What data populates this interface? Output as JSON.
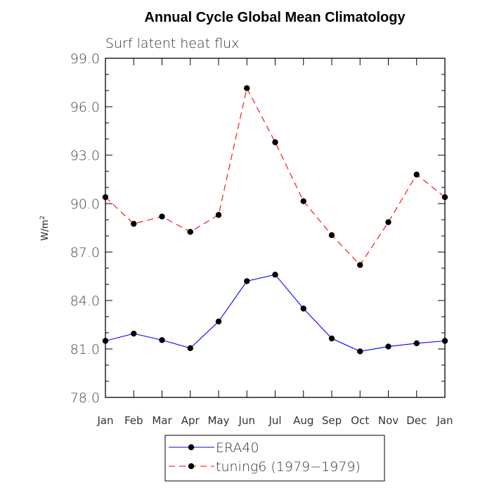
{
  "chart_data": {
    "type": "line",
    "title": "Annual Cycle Global Mean Climatology",
    "subtitle": "Surf latent heat flux",
    "xlabel": "",
    "ylabel_base": "W/m",
    "ylabel_sup": "2",
    "categories": [
      "Jan",
      "Feb",
      "Mar",
      "Apr",
      "May",
      "Jun",
      "Jul",
      "Aug",
      "Sep",
      "Oct",
      "Nov",
      "Dec",
      "Jan"
    ],
    "ylim": [
      78.0,
      99.0
    ],
    "yticks": [
      "78.0",
      "81.0",
      "84.0",
      "87.0",
      "90.0",
      "93.0",
      "96.0",
      "99.0"
    ],
    "grid": false,
    "legend_position": "bottom-center",
    "series": [
      {
        "name": "ERA40",
        "color": "#0000ff",
        "dash": "solid",
        "marker": "filled-circle",
        "values": [
          81.5,
          81.95,
          81.55,
          81.05,
          82.7,
          85.2,
          85.6,
          83.5,
          81.65,
          80.85,
          81.15,
          81.35,
          81.5
        ]
      },
      {
        "name": "tuning6 (1979−1979)",
        "color": "#ff0000",
        "dash": "dashed",
        "marker": "filled-circle",
        "values": [
          90.4,
          88.75,
          89.2,
          88.25,
          89.3,
          97.15,
          93.8,
          90.15,
          88.05,
          86.2,
          88.85,
          91.8,
          90.4
        ]
      }
    ]
  }
}
